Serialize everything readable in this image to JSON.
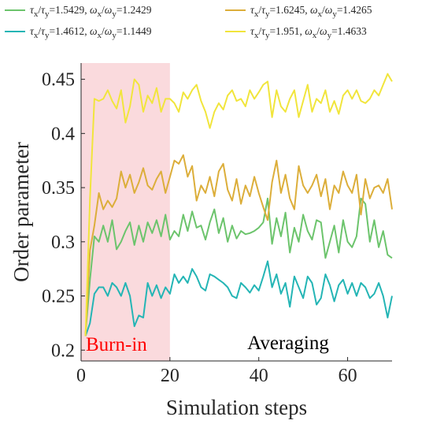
{
  "chart_data": {
    "type": "line",
    "title": "",
    "xlabel": "Simulation steps",
    "ylabel": "Order parameter",
    "xlim": [
      0,
      70
    ],
    "ylim": [
      0.19,
      0.465
    ],
    "xticks": [
      "0",
      "20",
      "40",
      "60"
    ],
    "yticks": [
      "0.2",
      "0.25",
      "0.3",
      "0.35",
      "0.4",
      "0.45"
    ],
    "legend_position": "top",
    "regions": [
      {
        "label": "Burn-in",
        "x_start": 0,
        "x_end": 20,
        "color": "#fadadd",
        "label_color": "#ff0000"
      },
      {
        "label": "Averaging",
        "x_start": 20,
        "x_end": 70,
        "label_color": "#000000"
      }
    ],
    "x": [
      1,
      2,
      3,
      4,
      5,
      6,
      7,
      8,
      9,
      10,
      11,
      12,
      13,
      14,
      15,
      16,
      17,
      18,
      19,
      20,
      21,
      22,
      23,
      24,
      25,
      26,
      27,
      28,
      29,
      30,
      31,
      32,
      33,
      34,
      35,
      36,
      37,
      38,
      39,
      40,
      41,
      42,
      43,
      44,
      45,
      46,
      47,
      48,
      49,
      50,
      51,
      52,
      53,
      54,
      55,
      56,
      57,
      58,
      59,
      60,
      61,
      62,
      63,
      64,
      65,
      66,
      67,
      68,
      69,
      70
    ],
    "series": [
      {
        "name": "τx/τy=1.5429, ωx/ωy=1.2429",
        "color": "#6cc46c",
        "values": [
          0.215,
          0.265,
          0.305,
          0.3,
          0.315,
          0.3,
          0.32,
          0.293,
          0.3,
          0.31,
          0.318,
          0.297,
          0.315,
          0.3,
          0.318,
          0.308,
          0.32,
          0.305,
          0.325,
          0.302,
          0.31,
          0.305,
          0.325,
          0.31,
          0.328,
          0.313,
          0.315,
          0.302,
          0.318,
          0.33,
          0.308,
          0.322,
          0.3,
          0.315,
          0.303,
          0.31,
          0.307,
          0.308,
          0.31,
          0.313,
          0.318,
          0.34,
          0.298,
          0.322,
          0.305,
          0.327,
          0.29,
          0.313,
          0.3,
          0.325,
          0.31,
          0.302,
          0.32,
          0.318,
          0.285,
          0.3,
          0.315,
          0.29,
          0.32,
          0.3,
          0.295,
          0.305,
          0.34,
          0.335,
          0.3,
          0.32,
          0.295,
          0.31,
          0.288,
          0.285
        ]
      },
      {
        "name": "τx/τy=1.4612, ωx/ωy=1.1449",
        "color": "#24b5b5",
        "values": [
          0.213,
          0.225,
          0.252,
          0.258,
          0.258,
          0.25,
          0.262,
          0.258,
          0.25,
          0.262,
          0.25,
          0.222,
          0.232,
          0.23,
          0.262,
          0.25,
          0.26,
          0.248,
          0.258,
          0.252,
          0.27,
          0.262,
          0.268,
          0.262,
          0.275,
          0.268,
          0.258,
          0.255,
          0.27,
          0.268,
          0.265,
          0.262,
          0.258,
          0.25,
          0.248,
          0.262,
          0.258,
          0.253,
          0.26,
          0.255,
          0.268,
          0.282,
          0.258,
          0.27,
          0.252,
          0.262,
          0.24,
          0.268,
          0.258,
          0.248,
          0.268,
          0.262,
          0.242,
          0.248,
          0.27,
          0.26,
          0.245,
          0.26,
          0.265,
          0.252,
          0.262,
          0.25,
          0.262,
          0.258,
          0.248,
          0.252,
          0.262,
          0.25,
          0.23,
          0.25
        ]
      },
      {
        "name": "τx/τy=1.6245, ωx/ωy=1.4265",
        "color": "#dcae3a",
        "values": [
          0.213,
          0.292,
          0.315,
          0.345,
          0.33,
          0.338,
          0.332,
          0.34,
          0.365,
          0.35,
          0.362,
          0.345,
          0.355,
          0.368,
          0.352,
          0.348,
          0.358,
          0.365,
          0.345,
          0.36,
          0.375,
          0.372,
          0.38,
          0.36,
          0.37,
          0.338,
          0.352,
          0.345,
          0.36,
          0.342,
          0.365,
          0.372,
          0.348,
          0.338,
          0.358,
          0.335,
          0.352,
          0.342,
          0.36,
          0.345,
          0.332,
          0.32,
          0.355,
          0.375,
          0.345,
          0.362,
          0.34,
          0.33,
          0.37,
          0.352,
          0.345,
          0.352,
          0.362,
          0.342,
          0.358,
          0.33,
          0.352,
          0.345,
          0.365,
          0.352,
          0.345,
          0.362,
          0.325,
          0.358,
          0.34,
          0.35,
          0.352,
          0.345,
          0.358,
          0.33
        ]
      },
      {
        "name": "τx/τy=1.951, ωx/ωy=1.4633",
        "color": "#f1e53c",
        "values": [
          0.213,
          0.34,
          0.432,
          0.43,
          0.432,
          0.44,
          0.43,
          0.423,
          0.44,
          0.41,
          0.425,
          0.45,
          0.445,
          0.42,
          0.435,
          0.428,
          0.442,
          0.42,
          0.432,
          0.432,
          0.428,
          0.42,
          0.438,
          0.432,
          0.44,
          0.445,
          0.43,
          0.42,
          0.405,
          0.42,
          0.428,
          0.422,
          0.435,
          0.44,
          0.43,
          0.432,
          0.425,
          0.44,
          0.432,
          0.438,
          0.445,
          0.448,
          0.415,
          0.44,
          0.425,
          0.42,
          0.432,
          0.44,
          0.415,
          0.43,
          0.445,
          0.42,
          0.432,
          0.428,
          0.44,
          0.42,
          0.43,
          0.418,
          0.435,
          0.44,
          0.432,
          0.44,
          0.43,
          0.428,
          0.432,
          0.44,
          0.435,
          0.445,
          0.455,
          0.448
        ]
      }
    ]
  },
  "legend": [
    {
      "ratio_tau": "τ",
      "sub_x": "x",
      "sep": "/",
      "sub_y": "y",
      "tau_value": "=1.5429,",
      "omega": "ω",
      "omega_value": "=1.2429"
    },
    {
      "ratio_tau": "τ",
      "sub_x": "x",
      "sep": "/",
      "sub_y": "y",
      "tau_value": "=1.6245,",
      "omega": "ω",
      "omega_value": "=1.4265"
    },
    {
      "ratio_tau": "τ",
      "sub_x": "x",
      "sep": "/",
      "sub_y": "y",
      "tau_value": "=1.4612,",
      "omega": "ω",
      "omega_value": "=1.1449"
    },
    {
      "ratio_tau": "τ",
      "sub_x": "x",
      "sep": "/",
      "sub_y": "y",
      "tau_value": "=1.951,",
      "omega": "ω",
      "omega_value": "=1.4633"
    }
  ]
}
